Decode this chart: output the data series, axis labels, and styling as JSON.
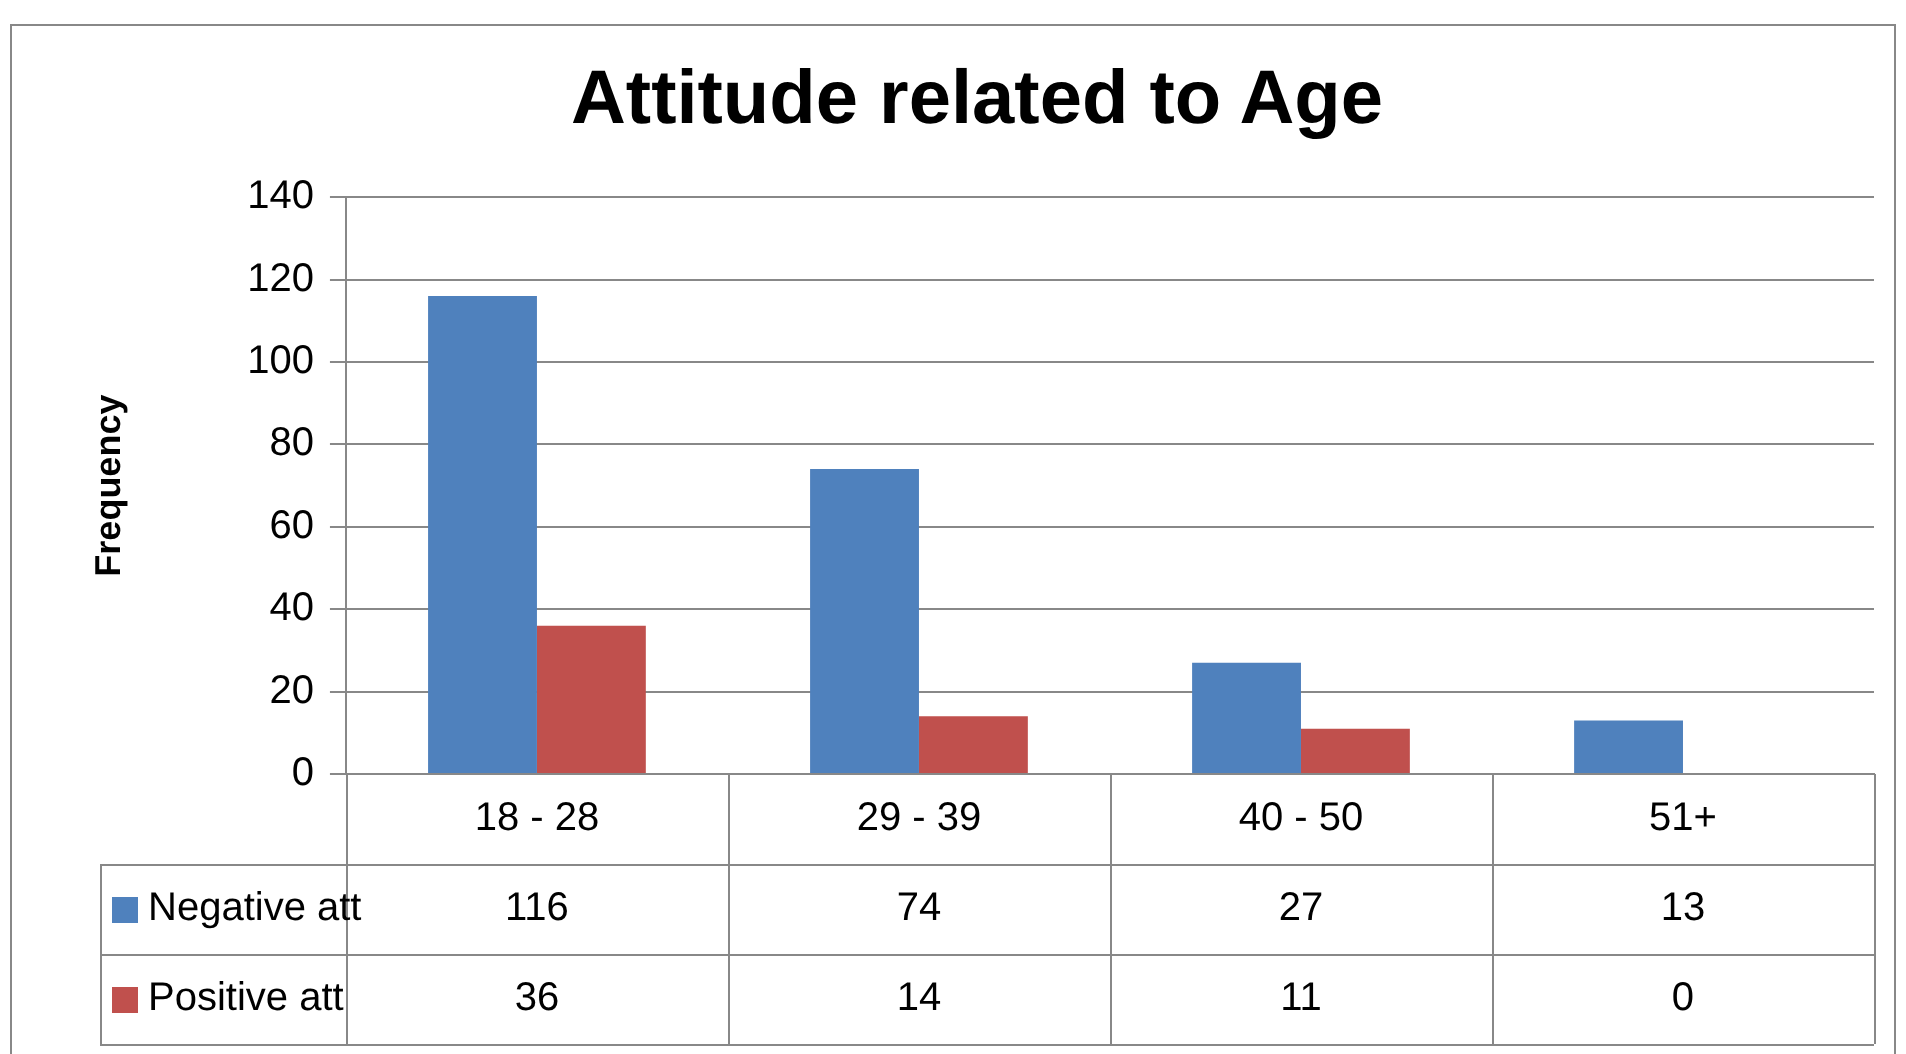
{
  "chart_data": {
    "type": "bar",
    "title": "Attitude related to Age",
    "ylabel": "Frequency",
    "categories": [
      "18 - 28",
      "29 - 39",
      "40 - 50",
      "51+"
    ],
    "series": [
      {
        "name": "Negative att",
        "color": "#4f81bd",
        "values": [
          116,
          74,
          27,
          13
        ]
      },
      {
        "name": "Positive att",
        "color": "#c0504d",
        "values": [
          36,
          14,
          11,
          0
        ]
      }
    ],
    "ylim": [
      0,
      140
    ],
    "yticks": [
      0,
      20,
      40,
      60,
      80,
      100,
      120,
      140
    ],
    "grid": "y",
    "legend": "bottom",
    "data_labels": true
  }
}
